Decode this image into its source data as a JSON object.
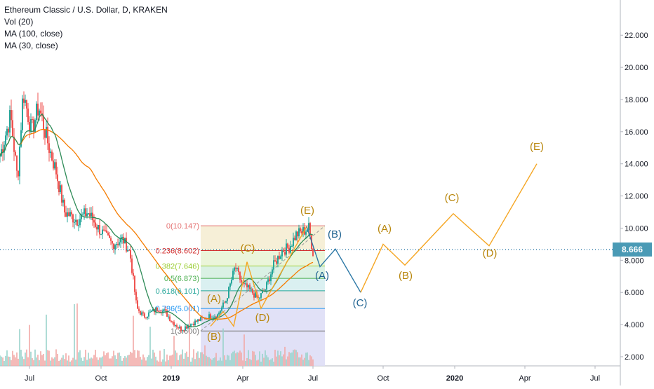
{
  "legend": {
    "title": "Ethereum Classic / U.S. Dollar, D, KRAKEN",
    "vol": "Vol (20)",
    "ma100": "MA (100, close)",
    "ma30": "MA (30, close)"
  },
  "last_price": "8.666",
  "colors": {
    "up": "#26a69a",
    "down": "#ef5350",
    "ma100": "#f57c00",
    "ma30": "#2e8b57",
    "orange_wave": "#f5a623",
    "blue_wave": "#2c78a6",
    "wave_label_orange": "#b8860b",
    "wave_label_blue": "#1f6391",
    "price_line": "#2c78a6"
  },
  "chart_data": {
    "type": "candlestick",
    "x_axis_labels": [
      "Jul",
      "Oct",
      "2019",
      "Apr",
      "Jul",
      "Oct",
      "2020",
      "Apr",
      "Jul"
    ],
    "y_axis_labels": [
      "2.000",
      "4.000",
      "6.000",
      "8.000",
      "10.000",
      "12.000",
      "14.000",
      "16.000",
      "18.000",
      "20.000",
      "22.000"
    ],
    "ylim": [
      1.3,
      23.1
    ],
    "fib_levels": [
      {
        "label": "0(10.147)",
        "ratio": 0,
        "value": 10.147,
        "color": "#e57373",
        "fill": "#f6d3d3"
      },
      {
        "label": "0.236(8.602)",
        "ratio": 0.236,
        "value": 8.602,
        "color": "#d32f2f",
        "fill": "#f5ecd0"
      },
      {
        "label": "0.382(7.646)",
        "ratio": 0.382,
        "value": 7.646,
        "color": "#9acd32",
        "fill": "#e8f3d4"
      },
      {
        "label": "0.5(6.873)",
        "ratio": 0.5,
        "value": 6.873,
        "color": "#4caf50",
        "fill": "#d4efdf"
      },
      {
        "label": "0.618(6.101)",
        "ratio": 0.618,
        "value": 6.101,
        "color": "#26a69a",
        "fill": "#d4edee"
      },
      {
        "label": "0.786(5.001)",
        "ratio": 0.786,
        "value": 5.001,
        "color": "#2196f3",
        "fill": "#e4e4e4"
      },
      {
        "label": "1(3.600)",
        "ratio": 1,
        "value": 3.6,
        "color": "#777777",
        "fill": "#dcdcf6"
      }
    ],
    "wave_labels": [
      {
        "text": "(A)",
        "color": "orange"
      },
      {
        "text": "(B)",
        "color": "orange"
      },
      {
        "text": "(C)",
        "color": "orange"
      },
      {
        "text": "(D)",
        "color": "orange"
      },
      {
        "text": "(E)",
        "color": "orange"
      },
      {
        "text": "(B)",
        "color": "blue"
      },
      {
        "text": "(A)",
        "color": "blue"
      },
      {
        "text": "(C)",
        "color": "blue"
      },
      {
        "text": "(A)",
        "color": "orange"
      },
      {
        "text": "(B)",
        "color": "orange"
      },
      {
        "text": "(C)",
        "color": "orange"
      },
      {
        "text": "(D)",
        "color": "orange"
      },
      {
        "text": "(E)",
        "color": "orange"
      }
    ],
    "wave_points_history": [
      3.9,
      4.8,
      3.9,
      7.9,
      5.0,
      10.1
    ],
    "wave_points_blue": [
      10.1,
      7.6,
      8.7,
      6.0
    ],
    "wave_points_projection": [
      6.0,
      9.0,
      7.7,
      10.9,
      8.9,
      14.0
    ],
    "current_price": 8.666,
    "grid": false,
    "legend_position": "top-left"
  }
}
